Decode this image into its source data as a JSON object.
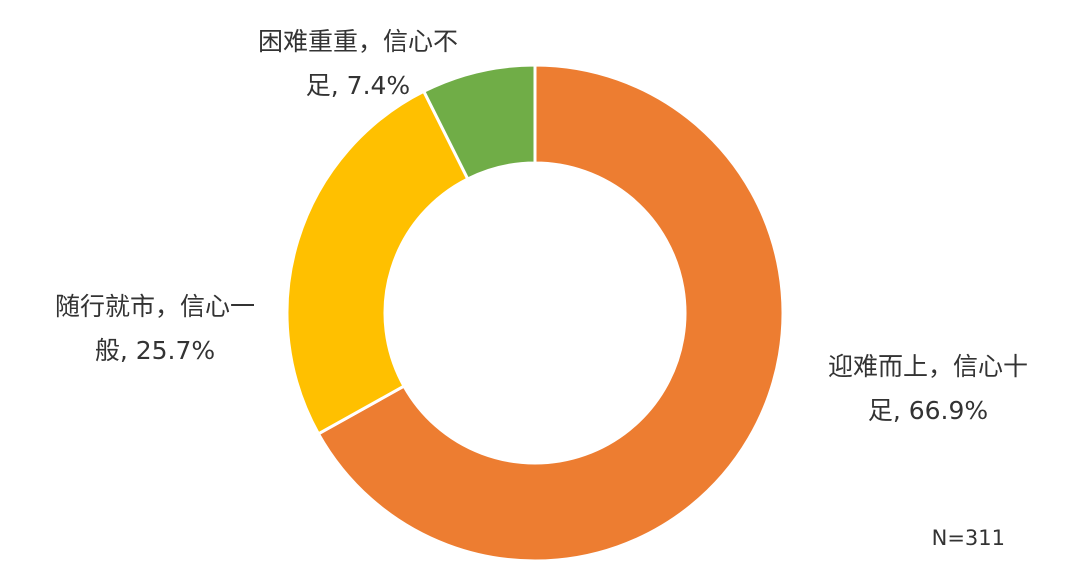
{
  "chart_data": {
    "type": "pie",
    "values": [
      66.9,
      25.7,
      7.4
    ],
    "value_labels": [
      "迎难而上，信心十足, 66.9%",
      "随行就市，信心一般, 25.7%",
      "困难重重，信心不足, 7.4%"
    ],
    "colors": [
      "#ed7d31",
      "#ffc000",
      "#70ad47"
    ],
    "donut": true,
    "annotation": "N=311"
  }
}
